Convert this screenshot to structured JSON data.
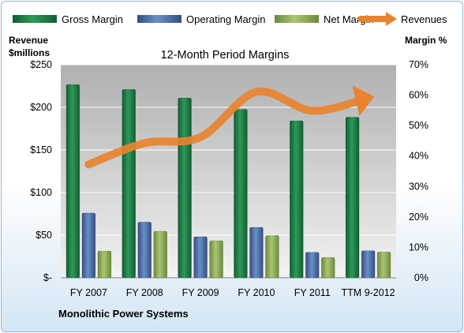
{
  "chart_data": {
    "type": "bar",
    "title": "12-Month Period Margins",
    "company": "Monolithic Power Systems",
    "categories": [
      "FY 2007",
      "FY 2008",
      "FY 2009",
      "FY 2010",
      "FY 2011",
      "TTM 9-2012"
    ],
    "left_axis": {
      "title_line1": "Revenue",
      "title_line2": "$millions",
      "range": [
        0,
        250
      ],
      "ticks": [
        0,
        50,
        100,
        150,
        200,
        250
      ],
      "tick_labels": [
        "$-",
        "$50",
        "$100",
        "$150",
        "$200",
        "$250"
      ]
    },
    "right_axis": {
      "title": "Margin %",
      "range": [
        0,
        70
      ],
      "ticks": [
        0,
        10,
        20,
        30,
        40,
        50,
        60,
        70
      ],
      "tick_labels": [
        "0%",
        "10%",
        "20%",
        "30%",
        "40%",
        "50%",
        "60%",
        "70%"
      ]
    },
    "series": [
      {
        "name": "Gross Margin",
        "axis": "right",
        "kind": "bar",
        "color": "#1e7a45",
        "values": [
          63.5,
          61.9,
          59.1,
          55.4,
          51.6,
          52.8
        ]
      },
      {
        "name": "Operating Margin",
        "axis": "right",
        "kind": "bar",
        "color": "#4a6fa8",
        "values": [
          21.3,
          18.3,
          13.5,
          16.6,
          8.4,
          8.9
        ]
      },
      {
        "name": "Net Margin",
        "axis": "right",
        "kind": "bar",
        "color": "#8eab55",
        "values": [
          8.8,
          15.3,
          12.2,
          13.9,
          6.7,
          8.5
        ]
      },
      {
        "name": "Revenues",
        "axis": "left",
        "kind": "line",
        "color": "#e8832f",
        "values": [
          133,
          158,
          165,
          218,
          196,
          211
        ]
      }
    ],
    "grid": true,
    "legend_position": "top"
  }
}
